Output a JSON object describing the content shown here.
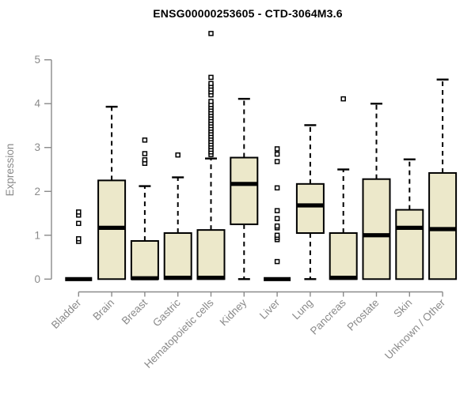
{
  "chart_data": {
    "type": "boxplot",
    "title": "ENSG00000253605 - CTD-3064M3.6",
    "ylabel": "Expression",
    "xlabel": "",
    "grid": false,
    "legend": false,
    "y_axis": {
      "ticks": [
        0,
        1,
        2,
        3,
        4,
        5
      ],
      "range": [
        -0.3,
        5.65
      ]
    },
    "colors": {
      "box_fill": "#ECE8CA",
      "box_stroke": "#000000",
      "median": "#000000",
      "whisker": "#000000",
      "outlier_stroke": "#000000",
      "axis": "#8A8A8A",
      "label": "#8A8A8A",
      "title": "#000000",
      "background": "#FFFFFF"
    },
    "categories": [
      {
        "label": "Bladder",
        "whisker_low": 0,
        "q1": 0,
        "median": 0,
        "q3": 0,
        "whisker_high": 0,
        "outliers": [
          0.86,
          0.92,
          1.27,
          1.46,
          1.53
        ]
      },
      {
        "label": "Brain",
        "whisker_low": 0,
        "q1": 0,
        "median": 1.17,
        "q3": 2.25,
        "whisker_high": 3.93,
        "outliers": []
      },
      {
        "label": "Breast",
        "whisker_low": 0,
        "q1": 0,
        "median": 0.02,
        "q3": 0.87,
        "whisker_high": 2.12,
        "outliers": [
          2.64,
          2.72,
          2.86,
          3.17
        ]
      },
      {
        "label": "Gastric",
        "whisker_low": 0,
        "q1": 0,
        "median": 0.03,
        "q3": 1.05,
        "whisker_high": 2.32,
        "outliers": [
          2.83
        ]
      },
      {
        "label": "Hematopoietic cells",
        "whisker_low": 0,
        "q1": 0,
        "median": 0.03,
        "q3": 1.12,
        "whisker_high": 2.75,
        "outliers": [
          2.84,
          2.9,
          2.96,
          3.02,
          3.08,
          3.14,
          3.2,
          3.26,
          3.32,
          3.38,
          3.44,
          3.5,
          3.56,
          3.62,
          3.68,
          3.74,
          3.8,
          3.86,
          3.92,
          3.98,
          4.05,
          4.2,
          4.27,
          4.33,
          4.4,
          4.46,
          4.6,
          5.6
        ]
      },
      {
        "label": "Kidney",
        "whisker_low": 0,
        "q1": 1.25,
        "median": 2.17,
        "q3": 2.77,
        "whisker_high": 4.11,
        "outliers": []
      },
      {
        "label": "Liver",
        "whisker_low": 0,
        "q1": 0,
        "median": 0,
        "q3": 0,
        "whisker_high": 0,
        "outliers": [
          0.4,
          0.9,
          0.95,
          1.0,
          1.17,
          1.21,
          1.38,
          1.56,
          2.08,
          2.68,
          2.85,
          2.97
        ]
      },
      {
        "label": "Lung",
        "whisker_low": 0,
        "q1": 1.05,
        "median": 1.68,
        "q3": 2.17,
        "whisker_high": 3.51,
        "outliers": []
      },
      {
        "label": "Pancreas",
        "whisker_low": 0,
        "q1": 0,
        "median": 0.03,
        "q3": 1.05,
        "whisker_high": 2.5,
        "outliers": [
          4.11
        ]
      },
      {
        "label": "Prostate",
        "whisker_low": 0,
        "q1": 0,
        "median": 1.0,
        "q3": 2.28,
        "whisker_high": 4.0,
        "outliers": []
      },
      {
        "label": "Skin",
        "whisker_low": 0,
        "q1": 0,
        "median": 1.17,
        "q3": 1.58,
        "whisker_high": 2.73,
        "outliers": []
      },
      {
        "label": "Unknown / Other",
        "whisker_low": 0,
        "q1": 0,
        "median": 1.14,
        "q3": 2.42,
        "whisker_high": 4.55,
        "outliers": []
      }
    ]
  }
}
